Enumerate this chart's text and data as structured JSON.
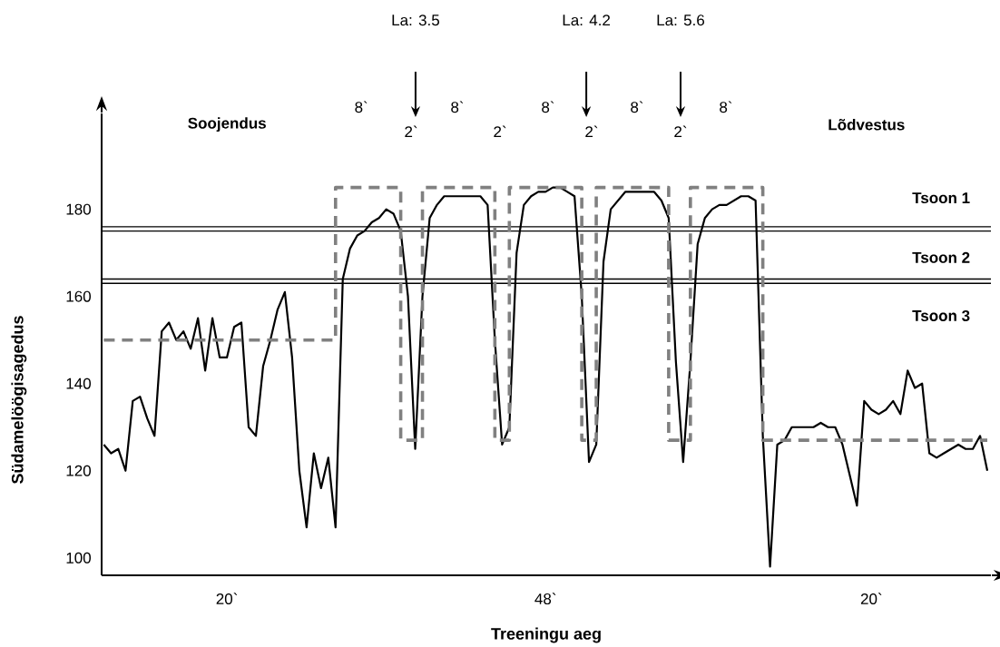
{
  "chart_data": {
    "type": "line",
    "xlabel": "Treeningu aeg",
    "ylabel": "Südamelöögisagedus",
    "ylim": [
      96,
      202
    ],
    "categories": [
      null,
      null,
      null,
      null,
      null,
      null,
      null,
      null,
      null,
      null,
      null,
      null,
      null,
      null,
      null,
      null,
      null,
      "20`",
      null,
      null,
      null,
      null,
      null,
      null,
      null,
      null,
      null,
      null,
      null,
      null,
      null,
      null,
      null,
      null,
      null,
      null,
      null,
      null,
      null,
      null,
      null,
      null,
      null,
      null,
      null,
      null,
      null,
      null,
      null,
      null,
      null,
      null,
      null,
      null,
      null,
      null,
      null,
      null,
      null,
      null,
      null,
      "48`",
      null,
      null,
      null,
      null,
      null,
      null,
      null,
      null,
      null,
      null,
      null,
      null,
      null,
      null,
      null,
      null,
      null,
      null,
      null,
      null,
      null,
      null,
      null,
      null,
      null,
      null,
      null,
      null,
      null,
      null,
      null,
      null,
      null,
      null,
      null,
      null,
      null,
      null,
      null,
      null,
      null,
      null,
      null,
      null,
      "20`",
      null,
      null,
      null,
      null,
      null,
      null,
      null,
      null,
      null,
      null,
      null,
      null,
      null,
      null,
      null,
      null
    ],
    "yticks": [
      100,
      120,
      140,
      160,
      180
    ],
    "marker": "none",
    "series": [
      {
        "color": "#000000",
        "line_style": "solid",
        "values": [
          126,
          124,
          125,
          120,
          136,
          137,
          132,
          128,
          152,
          154,
          150,
          152,
          148,
          155,
          143,
          155,
          146,
          146,
          153,
          154,
          130,
          128,
          144,
          150,
          157,
          161,
          146,
          120,
          107,
          124,
          116,
          123,
          107,
          164,
          171,
          174,
          175,
          177,
          178,
          180,
          179,
          175,
          160,
          125,
          160,
          178,
          181,
          183,
          183,
          183,
          183,
          183,
          183,
          181,
          150,
          126,
          130,
          170,
          181,
          183,
          184,
          184,
          185,
          185,
          184,
          183,
          160,
          122,
          126,
          168,
          180,
          182,
          184,
          184,
          184,
          184,
          184,
          182,
          178,
          145,
          122,
          145,
          172,
          178,
          180,
          181,
          181,
          182,
          183,
          183,
          182,
          128,
          98,
          126,
          127,
          130,
          130,
          130,
          130,
          131,
          130,
          130,
          126,
          119,
          112,
          136,
          134,
          133,
          134,
          136,
          133,
          143,
          139,
          140,
          124,
          123,
          124,
          125,
          126,
          125,
          125,
          128,
          120
        ]
      },
      {
        "type": "step",
        "color": "#808080",
        "line_style": "dashed",
        "values": [
          150,
          150,
          150,
          150,
          150,
          150,
          150,
          150,
          150,
          150,
          150,
          150,
          150,
          150,
          150,
          150,
          150,
          150,
          150,
          150,
          150,
          150,
          150,
          150,
          150,
          150,
          150,
          150,
          150,
          150,
          150,
          150,
          185,
          185,
          185,
          185,
          185,
          185,
          185,
          185,
          185,
          127,
          127,
          127,
          185,
          185,
          185,
          185,
          185,
          185,
          185,
          185,
          185,
          185,
          127,
          127,
          185,
          185,
          185,
          185,
          185,
          185,
          185,
          185,
          185,
          185,
          127,
          127,
          185,
          185,
          185,
          185,
          185,
          185,
          185,
          185,
          185,
          185,
          127,
          127,
          127,
          185,
          185,
          185,
          185,
          185,
          185,
          185,
          185,
          185,
          185,
          127,
          127,
          127,
          127,
          127,
          127,
          127,
          127,
          127,
          127,
          127,
          127,
          127,
          127,
          127,
          127,
          127,
          127,
          127,
          127,
          127,
          127,
          127,
          127,
          127,
          127,
          127,
          127,
          127,
          127,
          127,
          127
        ]
      }
    ],
    "ref_lines": [
      {
        "axis": "y",
        "value": 176,
        "color": "#000000"
      },
      {
        "axis": "y",
        "value": 175,
        "color": "#000000"
      },
      {
        "axis": "y",
        "value": 164,
        "color": "#000000"
      },
      {
        "axis": "y",
        "value": 163,
        "color": "#000000"
      }
    ],
    "annotations": [
      "Soojendus",
      "Lõdvestus",
      "Tsoon 1",
      "Tsoon 2",
      "Tsoon 3",
      "La: 3.5",
      "La: 4.2",
      "La: 5.6",
      "8`",
      "8`",
      "8`",
      "8`",
      "8`",
      "2`",
      "2`",
      "2`",
      "2`"
    ]
  }
}
